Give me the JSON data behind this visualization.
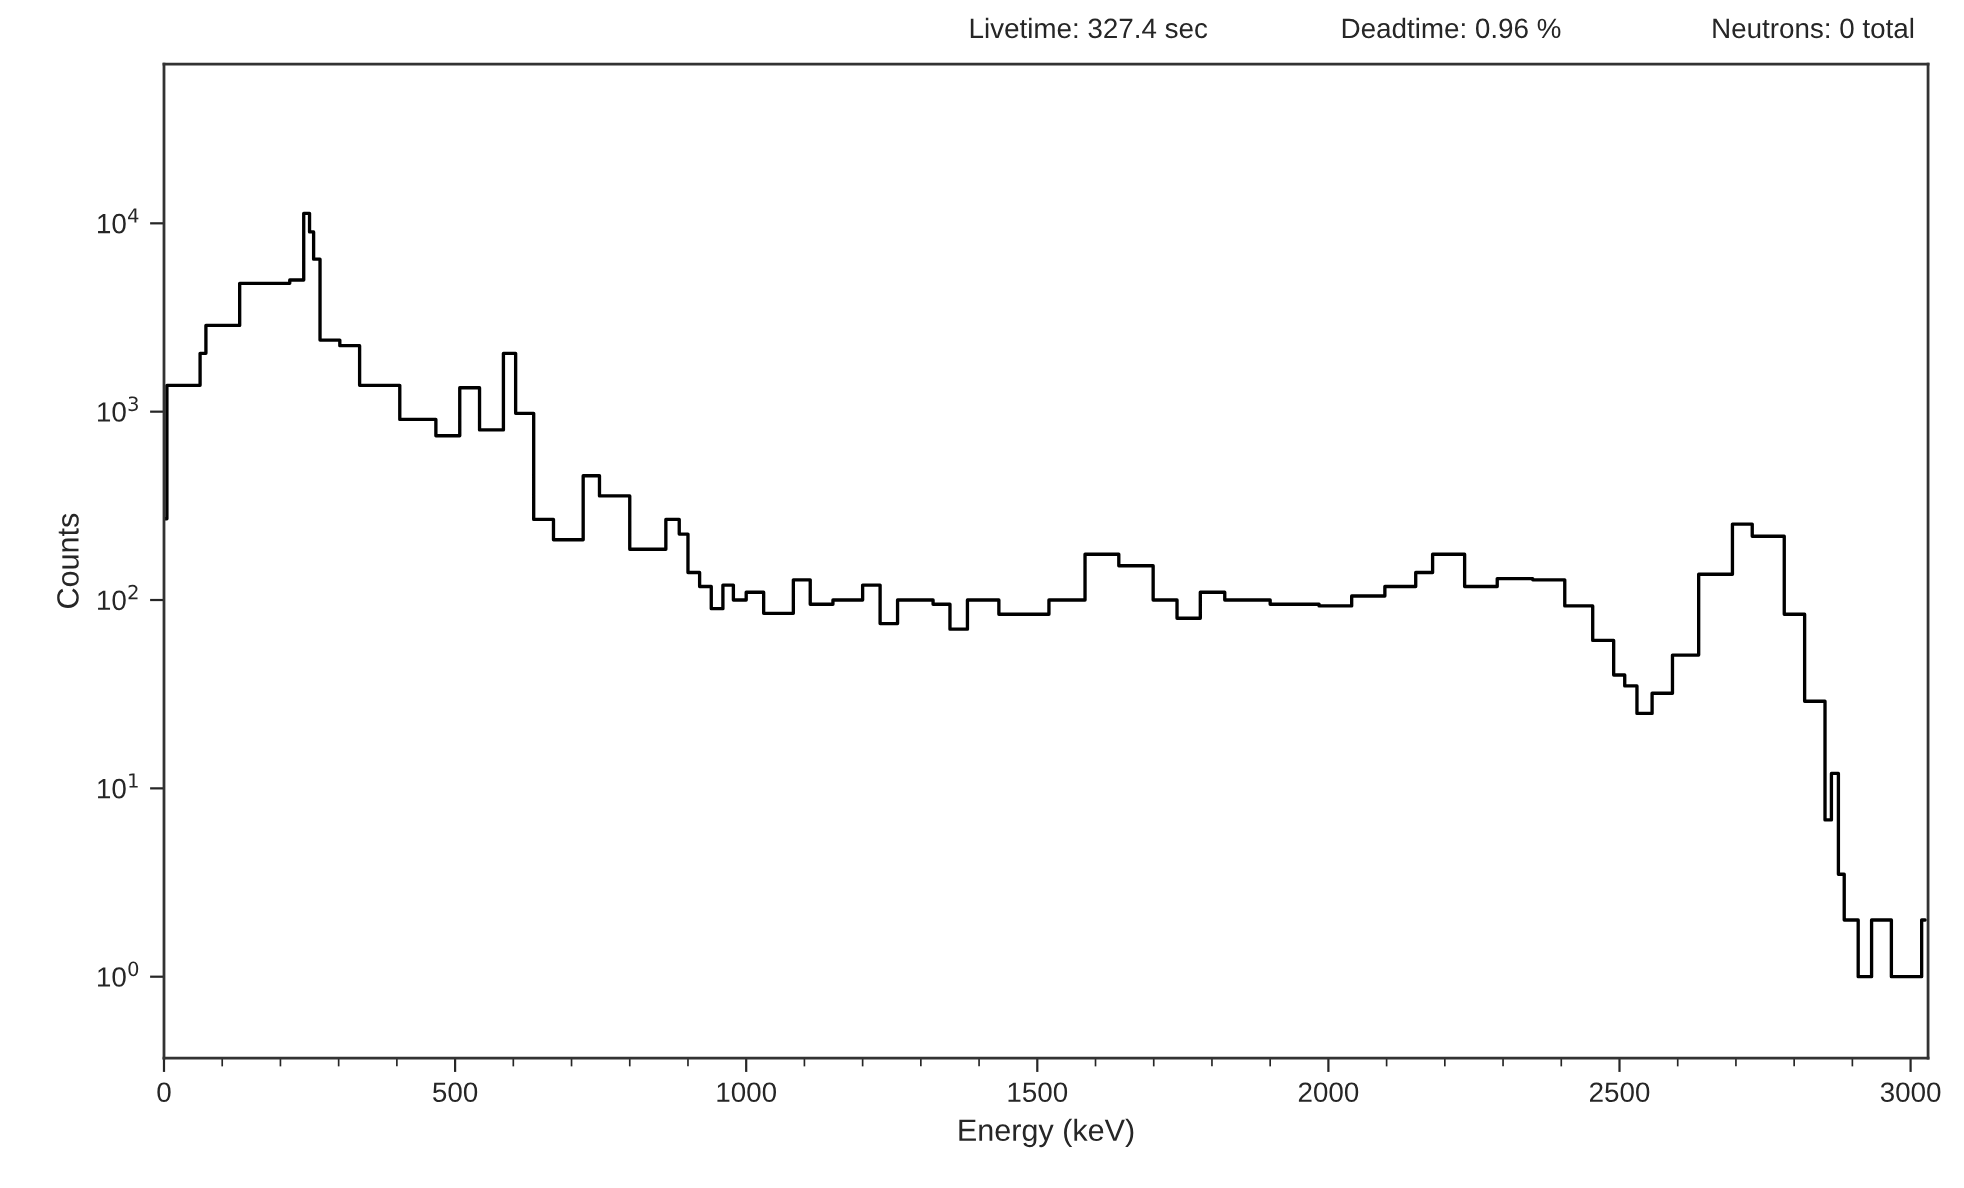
{
  "chart_data": {
    "type": "step",
    "xlabel": "Energy (keV)",
    "ylabel": "Counts",
    "log": "y",
    "grid": false,
    "xlim": [
      0,
      3030
    ],
    "ylim": [
      0.37,
      70000
    ],
    "xticks": [
      0,
      {
        "value": 100,
        "label": null
      },
      {
        "value": 200,
        "label": null
      },
      {
        "value": 300,
        "label": null
      },
      {
        "value": 400,
        "label": null
      },
      500,
      {
        "value": 600,
        "label": null
      },
      {
        "value": 700,
        "label": null
      },
      {
        "value": 800,
        "label": null
      },
      {
        "value": 900,
        "label": null
      },
      1000,
      {
        "value": 1100,
        "label": null
      },
      {
        "value": 1200,
        "label": null
      },
      {
        "value": 1300,
        "label": null
      },
      {
        "value": 1400,
        "label": null
      },
      1500,
      {
        "value": 1600,
        "label": null
      },
      {
        "value": 1700,
        "label": null
      },
      {
        "value": 1800,
        "label": null
      },
      {
        "value": 1900,
        "label": null
      },
      2000,
      {
        "value": 2100,
        "label": null
      },
      {
        "value": 2200,
        "label": null
      },
      {
        "value": 2300,
        "label": null
      },
      {
        "value": 2400,
        "label": null
      },
      2500,
      {
        "value": 2600,
        "label": null
      },
      {
        "value": 2700,
        "label": null
      },
      {
        "value": 2800,
        "label": null
      },
      {
        "value": 2900,
        "label": null
      },
      3000
    ],
    "yticks": [
      {
        "value": 1,
        "label": "10$^{0}$"
      },
      {
        "value": 10,
        "label": "10$^{1}$"
      },
      {
        "value": 100,
        "label": "10$^{2}$"
      },
      {
        "value": 1000,
        "label": "10$^{3}$"
      },
      {
        "value": 10000,
        "label": "10$^{4}$"
      }
    ],
    "annotations": [
      "Livetime: 327.4 sec",
      "Deadtime: 0.96 %",
      "Neutrons: 0 total"
    ],
    "series": [
      {
        "color": "#000000",
        "x": [
          0,
          5,
          14,
          62,
          72,
          130,
          216,
          232,
          240,
          250,
          257,
          268,
          302,
          336,
          405,
          467,
          508,
          542,
          583,
          604,
          635,
          669,
          720,
          748,
          800,
          862,
          885,
          900,
          920,
          940,
          960,
          978,
          1000,
          1030,
          1081,
          1110,
          1149,
          1200,
          1230,
          1260,
          1321,
          1350,
          1380,
          1434,
          1479,
          1520,
          1582,
          1640,
          1699,
          1740,
          1780,
          1822,
          1900,
          1984,
          2040,
          2097,
          2150,
          2179,
          2234,
          2290,
          2351,
          2406,
          2454,
          2490,
          2509,
          2530,
          2556,
          2591,
          2636,
          2694,
          2728,
          2783,
          2818,
          2853,
          2864,
          2876,
          2886,
          2910,
          2933,
          2962,
          2967,
          3002,
          3019,
          3025
        ],
        "values": [
          270,
          1380,
          1380,
          2040,
          2870,
          4800,
          5000,
          5000,
          11300,
          9000,
          6450,
          2400,
          2240,
          1380,
          910,
          745,
          1340,
          800,
          2040,
          980,
          268,
          209,
          457,
          357,
          186,
          268,
          224,
          140,
          118,
          90,
          120,
          100,
          110,
          85,
          128,
          95,
          100,
          120,
          75,
          100,
          95,
          70,
          100,
          84,
          84,
          100,
          175,
          152,
          100,
          80,
          110,
          100,
          95,
          93,
          105,
          118,
          140,
          175,
          118,
          130,
          128,
          93,
          61,
          40,
          35,
          25,
          32,
          51,
          137,
          253,
          218,
          84,
          29,
          6.8,
          12,
          3.5,
          2,
          1,
          2,
          2,
          1,
          1,
          2,
          2
        ]
      }
    ]
  }
}
